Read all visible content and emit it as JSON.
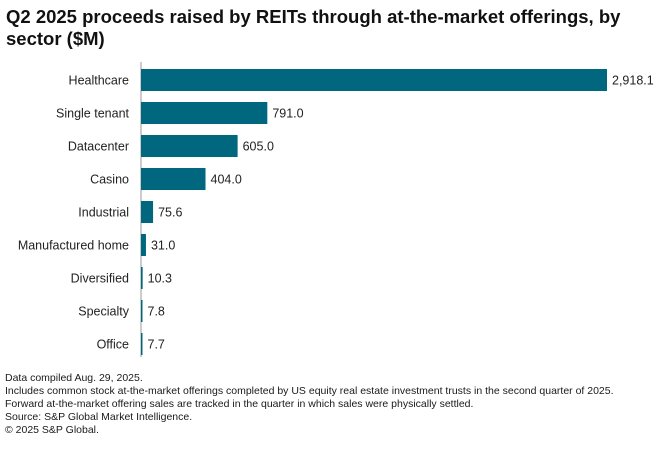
{
  "chart_data": {
    "type": "bar",
    "orientation": "horizontal",
    "title": "Q2 2025 proceeds raised by REITs through at-the-market offerings, by sector ($M)",
    "categories": [
      "Healthcare",
      "Single tenant",
      "Datacenter",
      "Casino",
      "Industrial",
      "Manufactured home",
      "Diversified",
      "Specialty",
      "Office"
    ],
    "values": [
      2918.1,
      791.0,
      605.0,
      404.0,
      75.6,
      31.0,
      10.3,
      7.8,
      7.7
    ],
    "value_labels": [
      "2,918.1",
      "791.0",
      "605.0",
      "404.0",
      "75.6",
      "31.0",
      "10.3",
      "7.8",
      "7.7"
    ],
    "xlim": [
      0,
      2918.1
    ],
    "grid": false,
    "legend": "none",
    "bar_color": "#00677f"
  },
  "footer": {
    "note1": "Data compiled Aug. 29, 2025.",
    "note2": "Includes common stock at-the-market offerings completed by US equity real estate investment trusts in the second quarter of 2025.",
    "note3": "Forward at-the-market offering sales are tracked in the quarter in which sales were physically settled.",
    "source": "Source: S&P Global Market Intelligence.",
    "copyright": "© 2025 S&P Global."
  }
}
